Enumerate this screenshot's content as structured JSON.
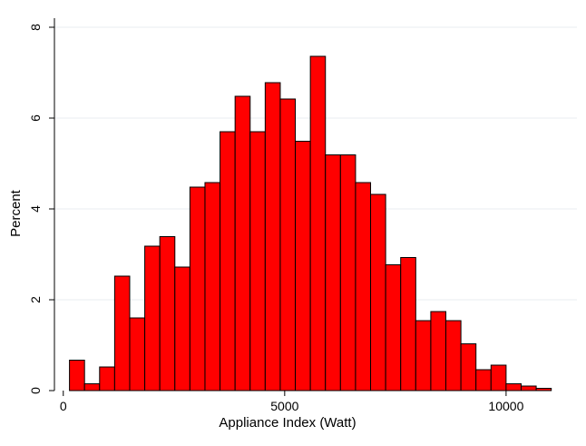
{
  "chart_data": {
    "type": "bar",
    "title": "",
    "xlabel": "Appliance Index (Watt)",
    "ylabel": "Percent",
    "xlim": [
      -200,
      11600
    ],
    "ylim": [
      0,
      8.2
    ],
    "xticks": [
      "0",
      "5000",
      "10000"
    ],
    "xtick_values": [
      0,
      5000,
      10000
    ],
    "yticks": [
      "0",
      "2",
      "4",
      "6",
      "8"
    ],
    "ytick_values": [
      0,
      2,
      4,
      6,
      8
    ],
    "grid": true,
    "bin_start": 140,
    "bin_width": 340,
    "values": [
      0.67,
      0.15,
      0.52,
      2.52,
      1.6,
      3.18,
      3.39,
      2.72,
      4.48,
      4.58,
      5.7,
      6.48,
      5.7,
      6.78,
      6.42,
      5.49,
      7.36,
      5.19,
      5.19,
      4.58,
      4.32,
      2.77,
      2.93,
      1.54,
      1.74,
      1.54,
      1.03,
      0.46,
      0.56,
      0.15,
      0.1,
      0.05
    ],
    "bar_color": "#ff0000",
    "edge_color": "#000000"
  }
}
